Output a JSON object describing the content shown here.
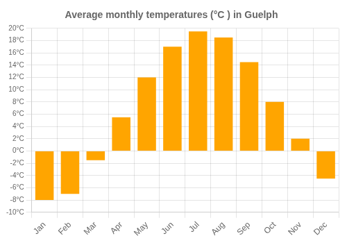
{
  "chart_data": {
    "type": "bar",
    "title": "Average monthly temperatures (°C ) in Guelph",
    "categories": [
      "Jan",
      "Feb",
      "Mar",
      "Apr",
      "May",
      "Jun",
      "Jul",
      "Aug",
      "Sep",
      "Oct",
      "Nov",
      "Dec"
    ],
    "values": [
      -8.0,
      -7.0,
      -1.5,
      5.5,
      12.0,
      17.0,
      19.5,
      18.5,
      14.5,
      8.0,
      2.0,
      -4.5
    ],
    "color": "#FFA500",
    "ylim": [
      -10,
      20
    ],
    "yticks": [
      {
        "value": -10,
        "label": "-10°C"
      },
      {
        "value": -8,
        "label": "-8°C"
      },
      {
        "value": -6,
        "label": "-6°C"
      },
      {
        "value": -4,
        "label": "-4°C"
      },
      {
        "value": -2,
        "label": "-2°C"
      },
      {
        "value": 0,
        "label": "0°C"
      },
      {
        "value": 2,
        "label": "2°C"
      },
      {
        "value": 4,
        "label": "4°C"
      },
      {
        "value": 6,
        "label": "6°C"
      },
      {
        "value": 8,
        "label": "8°C"
      },
      {
        "value": 10,
        "label": "10°C"
      },
      {
        "value": 12,
        "label": "12°C"
      },
      {
        "value": 14,
        "label": "14°C"
      },
      {
        "value": 16,
        "label": "16°C"
      },
      {
        "value": 18,
        "label": "18°C"
      },
      {
        "value": 20,
        "label": "20°C"
      }
    ],
    "grid": true
  }
}
